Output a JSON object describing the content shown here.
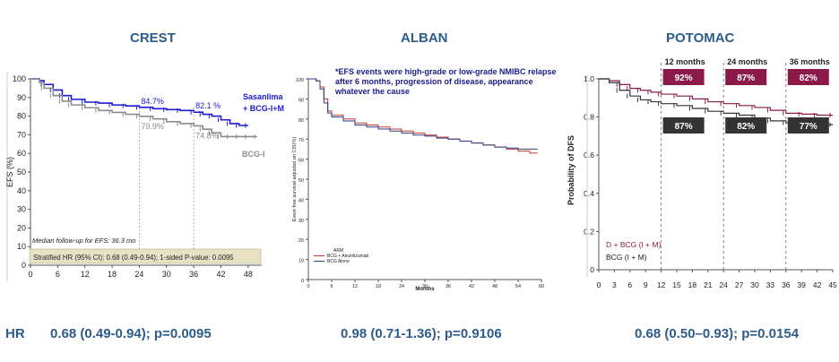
{
  "titles": {
    "crest": "CREST",
    "alban": "ALBAN",
    "potomac": "POTOMAC"
  },
  "hr": {
    "label": "HR",
    "crest": "0.68 (0.49-0.94); p=0.0095",
    "alban": "0.98 (0.71-1.36); p=0.9106",
    "potomac": "0.68 (0.50–0.93); p=0.0154"
  },
  "colors": {
    "title": "#2e5c8a",
    "blue": "#1a1ad6",
    "gray": "#8c8c8c",
    "maroon": "#8b1a4a",
    "dark": "#333333",
    "red": "#c0392b",
    "navy": "#2b3a8c"
  },
  "chart_data": [
    {
      "type": "line",
      "name_key": "crest",
      "ylabel": "EFS (%)",
      "xlim": [
        0,
        51
      ],
      "ylim": [
        0,
        100
      ],
      "xticks": [
        0,
        6,
        12,
        18,
        24,
        30,
        36,
        42,
        48
      ],
      "yticks": [
        0,
        10,
        20,
        30,
        40,
        50,
        60,
        70,
        80,
        90,
        100
      ],
      "series": [
        {
          "name": "Sasanlima + BCG-I+M",
          "color": "blue",
          "x": [
            0,
            2,
            3,
            5,
            7,
            9,
            12,
            15,
            18,
            21,
            24,
            27,
            30,
            33,
            36,
            38,
            40,
            42,
            44,
            46,
            48
          ],
          "y": [
            100,
            99,
            97,
            94,
            91,
            89,
            87.5,
            87,
            86,
            85.5,
            84.7,
            84,
            83.5,
            83,
            82.1,
            81,
            80,
            78,
            76,
            75,
            75
          ]
        },
        {
          "name": "BCG-I",
          "color": "gray",
          "x": [
            0,
            2,
            3,
            5,
            7,
            9,
            12,
            15,
            18,
            21,
            24,
            27,
            30,
            33,
            36,
            38,
            40,
            42,
            44,
            46,
            48,
            50
          ],
          "y": [
            100,
            98,
            95,
            91,
            88,
            86,
            84.5,
            83,
            82,
            81,
            79.9,
            78.5,
            77,
            76,
            74.8,
            73,
            71,
            69,
            69,
            69,
            69,
            69
          ]
        }
      ],
      "annotations": [
        {
          "text": "84.7%",
          "x": 24,
          "y": 84.7,
          "color": "blue"
        },
        {
          "text": "82.1 %",
          "x": 36,
          "y": 82.1,
          "color": "blue"
        },
        {
          "text": "79.9%",
          "x": 24,
          "y": 79.9,
          "color": "gray"
        },
        {
          "text": "74.8%",
          "x": 36,
          "y": 74.8,
          "color": "gray"
        }
      ],
      "legend_labels": [
        "Sasanlima",
        "+ BCG-I+M",
        "BCG-I"
      ],
      "footnote": "Median follow-up for EFS: 36.3 mo",
      "hr_box": "Stratified HR (95% CI): 0.68 (0.49-0.94); 1-sided P-value: 0.0095"
    },
    {
      "type": "line",
      "name_key": "alban",
      "ylabel": "Event free survival adjusted on CIS(%)",
      "xlabel": "Months",
      "xlim": [
        0,
        60
      ],
      "ylim": [
        0,
        100
      ],
      "xticks": [
        0,
        6,
        12,
        18,
        24,
        30,
        36,
        42,
        48,
        54,
        60
      ],
      "yticks": [
        0,
        10,
        20,
        30,
        40,
        50,
        60,
        70,
        80,
        90,
        100
      ],
      "note": "*EFS events were high-grade or low-grade NMIBC relapse after 6 months, progression of disease, appearance whatever the cause",
      "legend_title": "ARM",
      "series": [
        {
          "name": "BCG + Atezolizumab",
          "color": "red",
          "x": [
            0,
            1,
            2,
            3,
            4,
            5,
            6,
            9,
            12,
            15,
            18,
            21,
            24,
            27,
            30,
            33,
            36,
            39,
            42,
            45,
            48,
            51,
            54,
            57,
            59
          ],
          "y": [
            100,
            100,
            99,
            96,
            90,
            84,
            82,
            80,
            78,
            77,
            76,
            75,
            74,
            73,
            72,
            71,
            70,
            69,
            68,
            67,
            66,
            65,
            64,
            63,
            63
          ]
        },
        {
          "name": "BCG Alone",
          "color": "navy",
          "x": [
            0,
            1,
            2,
            3,
            4,
            5,
            6,
            9,
            12,
            15,
            18,
            21,
            24,
            27,
            30,
            33,
            36,
            39,
            42,
            45,
            48,
            51,
            54,
            57,
            59
          ],
          "y": [
            100,
            100,
            99,
            95,
            88,
            83,
            81,
            79,
            77,
            76,
            75,
            74,
            73,
            72,
            71.5,
            70.5,
            70,
            69,
            68,
            67,
            66,
            65.5,
            65,
            65,
            65
          ]
        }
      ]
    },
    {
      "type": "line",
      "name_key": "potomac",
      "ylabel": "Probability of DFS",
      "xlim": [
        0,
        45
      ],
      "ylim": [
        0,
        1.0
      ],
      "xticks": [
        0,
        3,
        6,
        9,
        12,
        15,
        18,
        21,
        24,
        27,
        30,
        33,
        36,
        39,
        42,
        45
      ],
      "yticks": [
        0,
        0.2,
        0.4,
        0.6,
        0.8,
        1.0
      ],
      "ytick_labels": [
        "0",
        "0.2",
        "0.4",
        "0.6",
        "0.8",
        "1.0"
      ],
      "series": [
        {
          "name": "D + BCG (I + M)",
          "color": "maroon",
          "x": [
            0,
            2,
            4,
            6,
            8,
            10,
            12,
            15,
            18,
            21,
            24,
            27,
            30,
            33,
            36,
            39,
            42,
            45
          ],
          "y": [
            1.0,
            0.99,
            0.97,
            0.95,
            0.94,
            0.93,
            0.92,
            0.91,
            0.895,
            0.88,
            0.87,
            0.86,
            0.85,
            0.835,
            0.82,
            0.815,
            0.81,
            0.81
          ]
        },
        {
          "name": "BCG (I + M)",
          "color": "dark",
          "x": [
            0,
            2,
            4,
            6,
            8,
            10,
            12,
            15,
            18,
            21,
            24,
            27,
            30,
            33,
            36,
            39,
            42,
            45
          ],
          "y": [
            1.0,
            0.98,
            0.94,
            0.91,
            0.89,
            0.88,
            0.87,
            0.86,
            0.845,
            0.83,
            0.82,
            0.81,
            0.795,
            0.78,
            0.77,
            0.765,
            0.76,
            0.76
          ]
        }
      ],
      "milestones": [
        {
          "label": "12 months",
          "x": 12,
          "top": "92%",
          "bottom": "87%"
        },
        {
          "label": "24 months",
          "x": 24,
          "top": "87%",
          "bottom": "82%"
        },
        {
          "label": "36 months",
          "x": 36,
          "top": "82%",
          "bottom": "77%"
        }
      ]
    }
  ]
}
